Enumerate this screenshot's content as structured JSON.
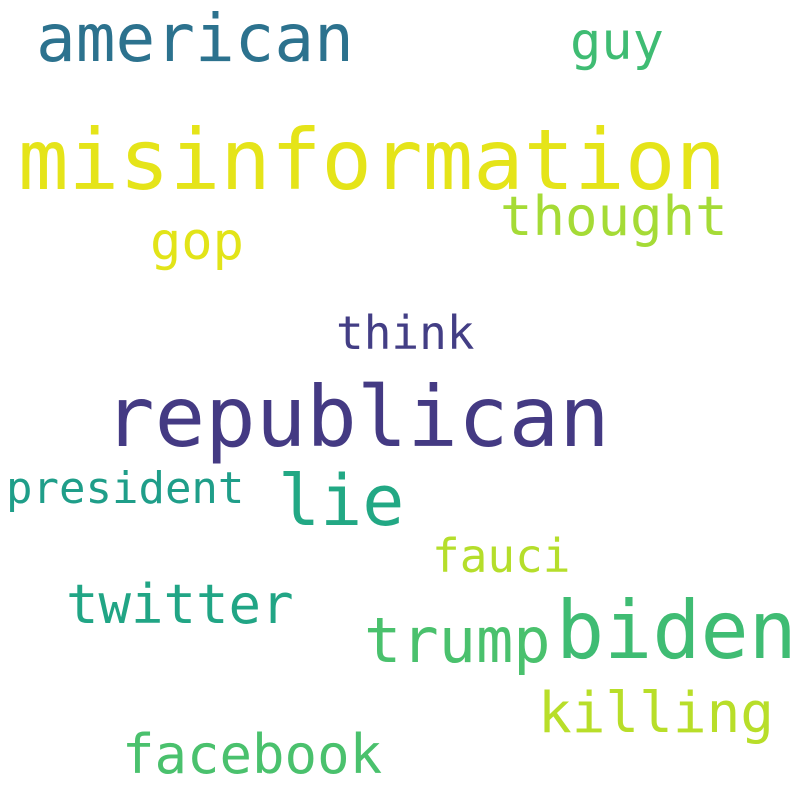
{
  "words": [
    {
      "text": "american",
      "color": "#2c728e"
    },
    {
      "text": "guy",
      "color": "#3fbc73"
    },
    {
      "text": "misinformation",
      "color": "#e5e419"
    },
    {
      "text": "thought",
      "color": "#a5db36"
    },
    {
      "text": "gop",
      "color": "#e2e418"
    },
    {
      "text": "think",
      "color": "#433e85"
    },
    {
      "text": "republican",
      "color": "#443a83"
    },
    {
      "text": "president",
      "color": "#1f9e89"
    },
    {
      "text": "lie",
      "color": "#22a884"
    },
    {
      "text": "fauci",
      "color": "#b5de2b"
    },
    {
      "text": "twitter",
      "color": "#21a585"
    },
    {
      "text": "trump",
      "color": "#4ac16d"
    },
    {
      "text": "biden",
      "color": "#3fbc73"
    },
    {
      "text": "killing",
      "color": "#b8de29"
    },
    {
      "text": "facebook",
      "color": "#4ac16d"
    }
  ]
}
